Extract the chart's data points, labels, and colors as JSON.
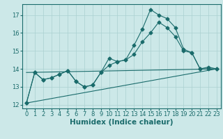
{
  "title": "",
  "xlabel": "Humidex (Indice chaleur)",
  "ylabel": "",
  "bg_color": "#cce8e8",
  "line_color": "#1a6b6b",
  "marker": "D",
  "marker_size": 2.5,
  "xlim": [
    -0.5,
    23.5
  ],
  "ylim": [
    11.8,
    17.6
  ],
  "yticks": [
    12,
    13,
    14,
    15,
    16,
    17
  ],
  "xticks": [
    0,
    1,
    2,
    3,
    4,
    5,
    6,
    7,
    8,
    9,
    10,
    11,
    12,
    13,
    14,
    15,
    16,
    17,
    18,
    19,
    20,
    21,
    22,
    23
  ],
  "series": [
    {
      "x": [
        0,
        1,
        2,
        3,
        4,
        5,
        6,
        7,
        8,
        9,
        10,
        11,
        12,
        13,
        14,
        15,
        16,
        17,
        18,
        19,
        20,
        21,
        22,
        23
      ],
      "y": [
        12.1,
        13.8,
        13.4,
        13.5,
        13.7,
        13.9,
        13.3,
        13.0,
        13.1,
        13.8,
        14.6,
        14.4,
        14.5,
        15.3,
        16.2,
        17.3,
        17.0,
        16.8,
        16.3,
        15.1,
        14.9,
        14.0,
        14.1,
        14.0
      ],
      "no_marker": false
    },
    {
      "x": [
        0,
        1,
        2,
        3,
        4,
        5,
        6,
        7,
        8,
        9,
        10,
        11,
        12,
        13,
        14,
        15,
        16,
        17,
        18,
        19,
        20,
        21,
        22,
        23
      ],
      "y": [
        12.1,
        13.8,
        13.4,
        13.5,
        13.7,
        13.9,
        13.3,
        13.0,
        13.1,
        13.8,
        14.2,
        14.4,
        14.5,
        14.8,
        15.5,
        16.0,
        16.6,
        16.3,
        15.8,
        15.0,
        14.9,
        14.0,
        14.0,
        14.0
      ],
      "no_marker": false
    },
    {
      "x": [
        0,
        23
      ],
      "y": [
        12.1,
        14.0
      ],
      "no_marker": true
    },
    {
      "x": [
        0,
        23
      ],
      "y": [
        13.8,
        14.0
      ],
      "no_marker": true
    }
  ],
  "grid_color": "#aad0d0",
  "tick_fontsize": 6,
  "label_fontsize": 7.5
}
